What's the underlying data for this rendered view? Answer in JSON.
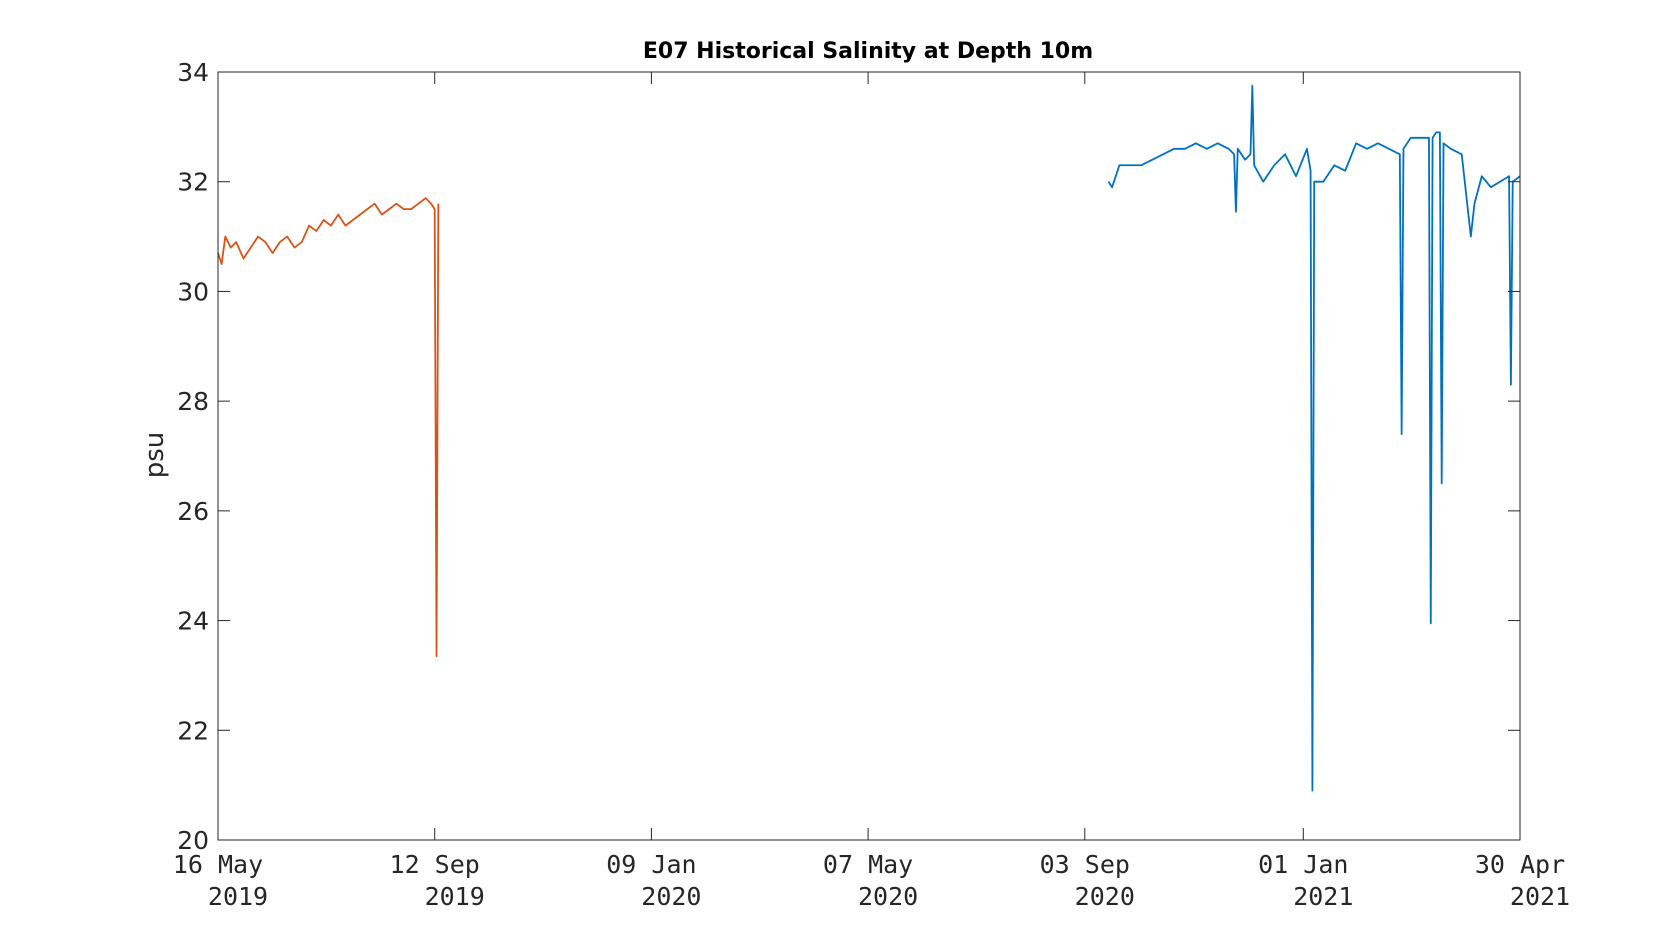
{
  "chart_data": {
    "type": "line",
    "title": "E07 Historical Salinity at Depth 10m",
    "xlabel": "",
    "ylabel": "psu",
    "ylim": [
      20,
      34
    ],
    "yticks": [
      20,
      22,
      24,
      26,
      28,
      30,
      32,
      34
    ],
    "xlim": [
      "2019-05-16",
      "2021-04-30"
    ],
    "xticks": [
      {
        "date": "2019-05-16",
        "line1": "16 May",
        "line2": "2019"
      },
      {
        "date": "2019-09-12",
        "line1": "12 Sep",
        "line2": "2019"
      },
      {
        "date": "2020-01-09",
        "line1": "09 Jan",
        "line2": "2020"
      },
      {
        "date": "2020-05-07",
        "line1": "07 May",
        "line2": "2020"
      },
      {
        "date": "2020-09-03",
        "line1": "03 Sep",
        "line2": "2020"
      },
      {
        "date": "2021-01-01",
        "line1": "01 Jan",
        "line2": "2021"
      },
      {
        "date": "2021-04-30",
        "line1": "30 Apr",
        "line2": "2021"
      }
    ],
    "grid": false,
    "box": true,
    "series": [
      {
        "color": "#D95319",
        "x": [
          "2019-05-16",
          "2019-05-18",
          "2019-05-20",
          "2019-05-23",
          "2019-05-26",
          "2019-05-30",
          "2019-06-03",
          "2019-06-07",
          "2019-06-11",
          "2019-06-15",
          "2019-06-19",
          "2019-06-23",
          "2019-06-27",
          "2019-07-01",
          "2019-07-05",
          "2019-07-09",
          "2019-07-13",
          "2019-07-17",
          "2019-07-21",
          "2019-07-25",
          "2019-07-29",
          "2019-08-02",
          "2019-08-06",
          "2019-08-10",
          "2019-08-14",
          "2019-08-18",
          "2019-08-22",
          "2019-08-26",
          "2019-08-30",
          "2019-09-03",
          "2019-09-07",
          "2019-09-10",
          "2019-09-12",
          "2019-09-13",
          "2019-09-14"
        ],
        "y": [
          30.7,
          30.5,
          31.0,
          30.8,
          30.9,
          30.6,
          30.8,
          31.0,
          30.9,
          30.7,
          30.9,
          31.0,
          30.8,
          30.9,
          31.2,
          31.1,
          31.3,
          31.2,
          31.4,
          31.2,
          31.3,
          31.4,
          31.5,
          31.6,
          31.4,
          31.5,
          31.6,
          31.5,
          31.5,
          31.6,
          31.7,
          31.6,
          31.5,
          23.35,
          31.6
        ]
      },
      {
        "color": "#0072BD",
        "x": [
          "2020-09-16",
          "2020-09-18",
          "2020-09-22",
          "2020-09-28",
          "2020-10-04",
          "2020-10-10",
          "2020-10-16",
          "2020-10-22",
          "2020-10-28",
          "2020-11-03",
          "2020-11-09",
          "2020-11-15",
          "2020-11-21",
          "2020-11-24",
          "2020-11-25",
          "2020-11-26",
          "2020-11-30",
          "2020-12-03",
          "2020-12-04",
          "2020-12-05",
          "2020-12-10",
          "2020-12-16",
          "2020-12-22",
          "2020-12-28",
          "2021-01-03",
          "2021-01-05",
          "2021-01-06",
          "2021-01-07",
          "2021-01-12",
          "2021-01-18",
          "2021-01-24",
          "2021-01-30",
          "2021-02-05",
          "2021-02-11",
          "2021-02-17",
          "2021-02-23",
          "2021-02-24",
          "2021-02-25",
          "2021-03-01",
          "2021-03-07",
          "2021-03-11",
          "2021-03-12",
          "2021-03-13",
          "2021-03-15",
          "2021-03-17",
          "2021-03-18",
          "2021-03-19",
          "2021-03-23",
          "2021-03-29",
          "2021-04-03",
          "2021-04-05",
          "2021-04-09",
          "2021-04-14",
          "2021-04-19",
          "2021-04-24",
          "2021-04-25",
          "2021-04-26",
          "2021-04-30"
        ],
        "y": [
          32.0,
          31.9,
          32.3,
          32.3,
          32.3,
          32.4,
          32.5,
          32.6,
          32.6,
          32.7,
          32.6,
          32.7,
          32.6,
          32.5,
          31.45,
          32.6,
          32.4,
          32.5,
          33.75,
          32.3,
          32.0,
          32.3,
          32.5,
          32.1,
          32.6,
          32.2,
          20.9,
          32.0,
          32.0,
          32.3,
          32.2,
          32.7,
          32.6,
          32.7,
          32.6,
          32.5,
          27.4,
          32.6,
          32.8,
          32.8,
          32.8,
          23.95,
          32.8,
          32.9,
          32.9,
          26.5,
          32.7,
          32.6,
          32.5,
          31.0,
          31.6,
          32.1,
          31.9,
          32.0,
          32.1,
          28.3,
          32.0,
          32.1
        ]
      }
    ]
  }
}
